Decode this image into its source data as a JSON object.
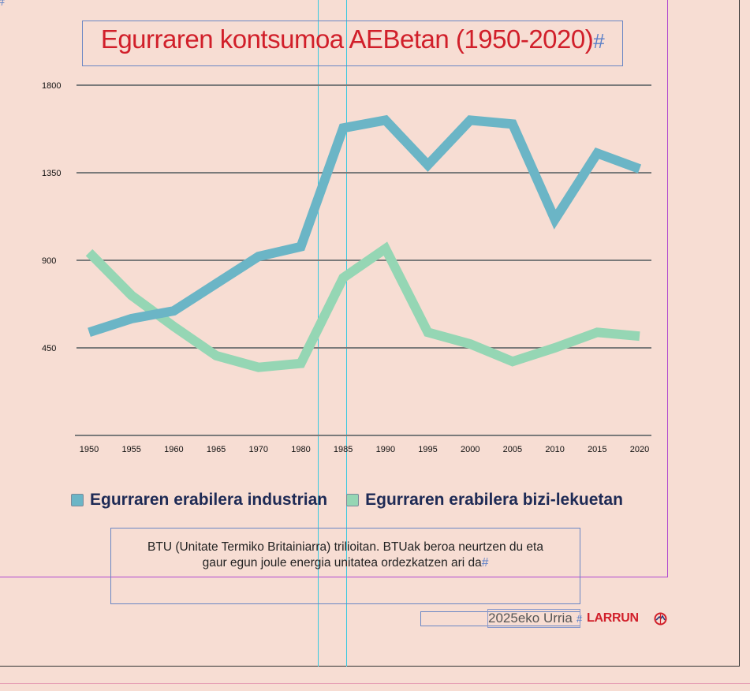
{
  "title": "Egurraren kontsumoa AEBetan (1950-2020)",
  "title_hash": "#",
  "legend": {
    "industry": "Egurraren erabilera industrian",
    "homes": "Egurraren erabilera bizi-lekuetan"
  },
  "note": {
    "line1": "BTU (Unitate Termiko Britainiarra) trilioitan. BTUak beroa neurtzen du eta",
    "line2": "gaur egun joule energia unitatea ordezkatzen ari da",
    "hash": "#"
  },
  "footer": {
    "date": "2025eko Urria",
    "hash": "#",
    "brand": "LARRUN",
    "brand_icon": "larrun-logo-icon"
  },
  "corner_hash": "#",
  "colors": {
    "industry": "#6bb5c6",
    "homes": "#95d6b4",
    "title": "#d11f2a",
    "background": "#f7ddd3",
    "gridline": "#7a7a7a"
  },
  "chart_data": {
    "type": "line",
    "title": "Egurraren kontsumoa AEBetan (1950-2020)",
    "xlabel": "",
    "ylabel": "",
    "x": [
      "1950",
      "1955",
      "1960",
      "1965",
      "1970",
      "1980",
      "1985",
      "1990",
      "1995",
      "2000",
      "2005",
      "2010",
      "2015",
      "2020"
    ],
    "yticks": [
      450,
      900,
      1350,
      1800
    ],
    "ylim": [
      0,
      1800
    ],
    "grid": true,
    "legend_position": "bottom",
    "series": [
      {
        "name": "Egurraren erabilera industrian",
        "color": "#6bb5c6",
        "values": [
          530,
          600,
          640,
          780,
          920,
          970,
          1580,
          1620,
          1390,
          1620,
          1600,
          1110,
          1450,
          1370
        ]
      },
      {
        "name": "Egurraren erabilera bizi-lekuetan",
        "color": "#95d6b4",
        "values": [
          940,
          720,
          560,
          410,
          350,
          370,
          810,
          960,
          530,
          470,
          380,
          450,
          530,
          510
        ]
      }
    ]
  }
}
